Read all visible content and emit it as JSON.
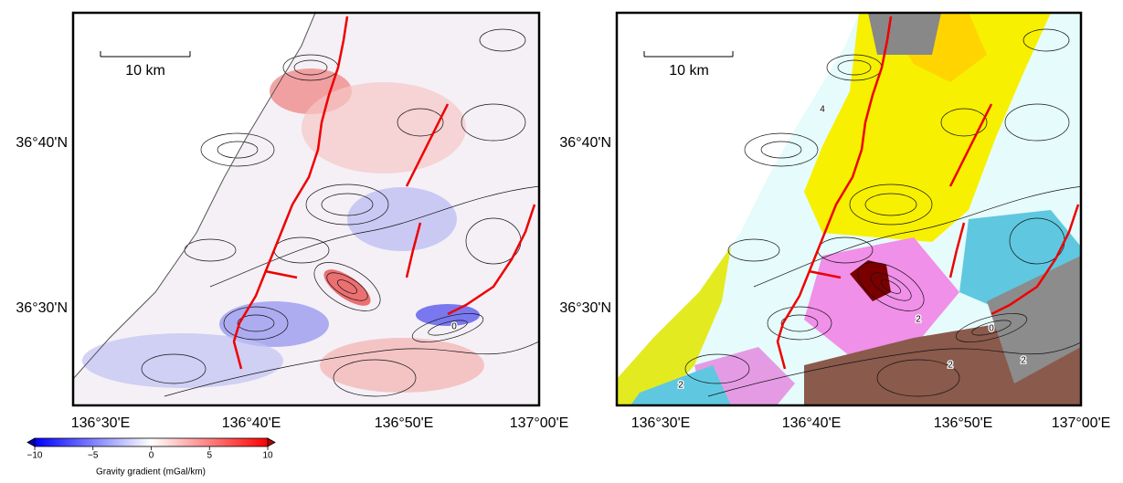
{
  "maps": [
    {
      "lat_labels": [
        "36°40'N",
        "36°30'N"
      ],
      "lon_labels": [
        "136°30'E",
        "136°40'E",
        "136°50'E",
        "137°00'E"
      ],
      "scale_bar": "10 km",
      "contour_labels": [
        "0"
      ]
    },
    {
      "lat_labels": [
        "36°40'N",
        "36°30'N"
      ],
      "lon_labels": [
        "136°30'E",
        "136°40'E",
        "136°50'E",
        "137°00'E"
      ],
      "scale_bar": "10 km",
      "contour_labels": [
        "4",
        "2",
        "2",
        "2",
        "0",
        "2"
      ]
    }
  ],
  "colorbar": {
    "range": [
      -10,
      10
    ],
    "ticks": [
      {
        "value": -10,
        "label": "−10"
      },
      {
        "value": -5,
        "label": "−5"
      },
      0,
      5,
      10
    ],
    "label": "Gravity gradient (mGal/km)"
  }
}
